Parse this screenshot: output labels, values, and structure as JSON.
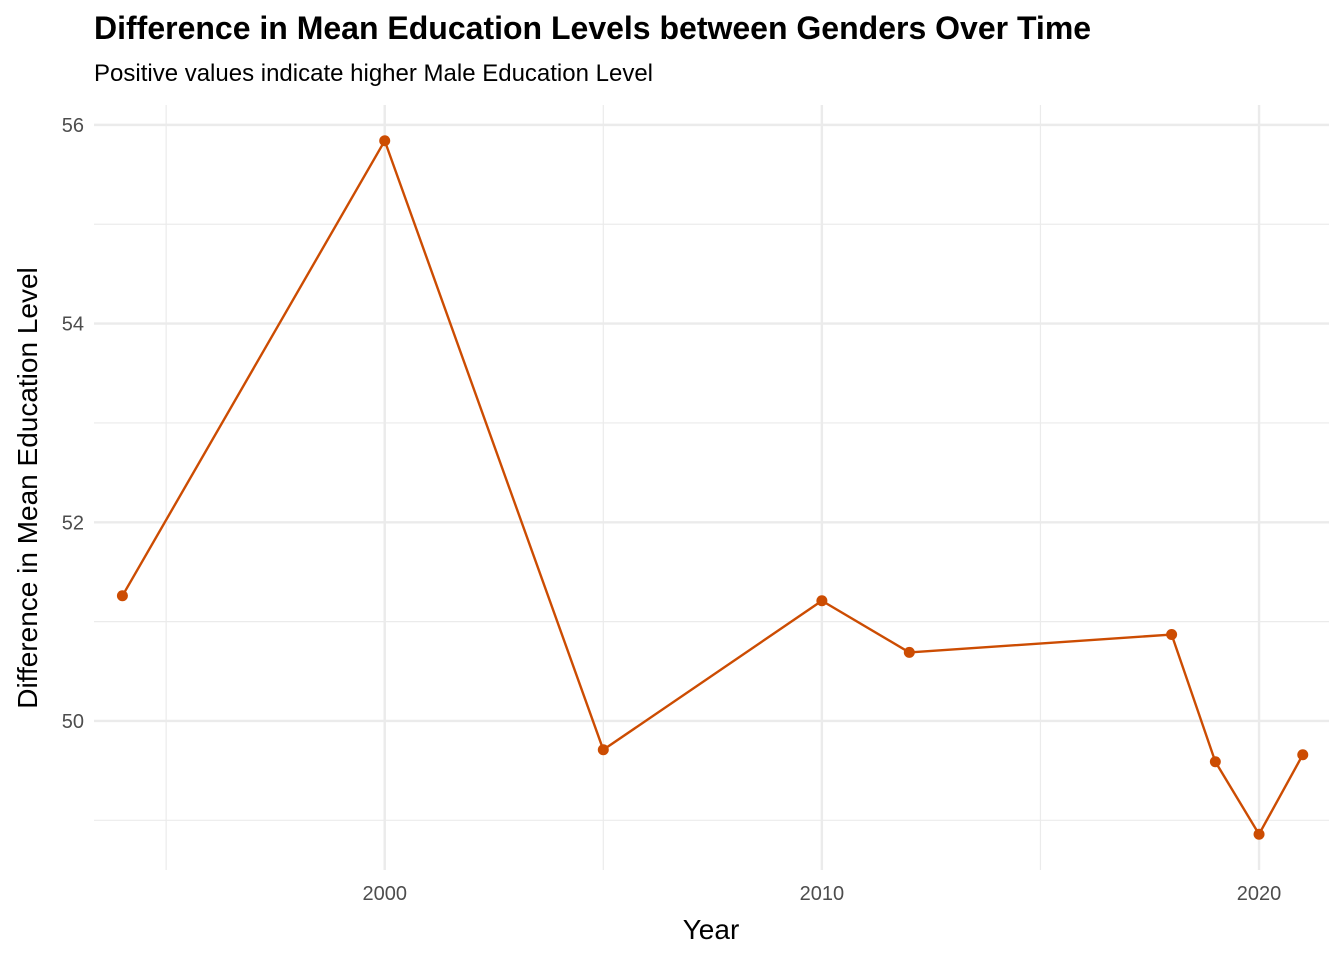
{
  "chart_data": {
    "type": "line",
    "title": "Difference in Mean Education Levels between Genders Over Time",
    "subtitle": "Positive values indicate higher Male Education Level",
    "xlabel": "Year",
    "ylabel": "Difference in Mean Education Level",
    "x": [
      1994,
      2000,
      2005,
      2010,
      2012,
      2018,
      2019,
      2020,
      2021
    ],
    "series": [
      {
        "values": [
          51.26,
          55.84,
          49.71,
          51.21,
          50.69,
          50.87,
          49.59,
          48.86,
          49.66
        ]
      }
    ],
    "xlim": [
      1993.35,
      2021.6
    ],
    "ylim": [
      48.5,
      56.2
    ],
    "x_ticks": [
      2000,
      2010,
      2020
    ],
    "x_minor_ticks": [
      1995,
      2005,
      2015
    ],
    "y_ticks": [
      50,
      52,
      54,
      56
    ],
    "y_minor_ticks": [
      49,
      51,
      53,
      55
    ],
    "grid": true,
    "line_color": "#CC4C02",
    "grid_color": "#EBEBEB"
  }
}
